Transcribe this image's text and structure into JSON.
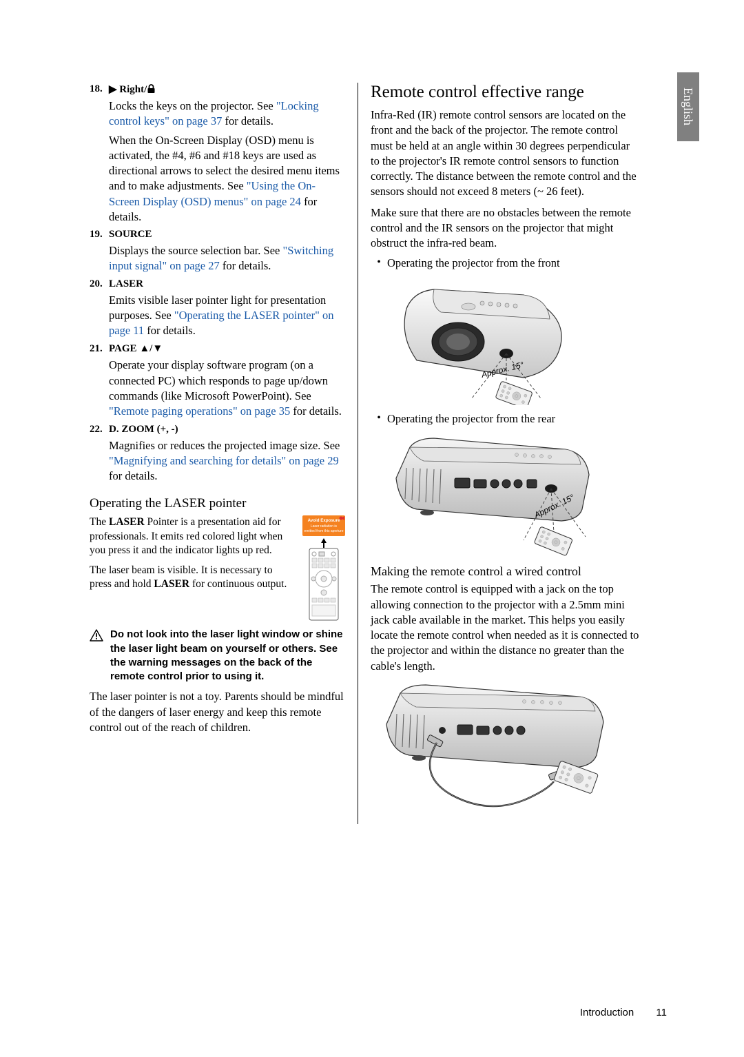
{
  "sideTab": "English",
  "items": [
    {
      "num": "18.",
      "title_pre": "",
      "title": "Right/",
      "glyph": "right-lock",
      "bodies": [
        {
          "parts": [
            {
              "t": "Locks the keys on the projector. See "
            },
            {
              "t": "\"Locking control keys\" on page 37",
              "link": true
            },
            {
              "t": " for details."
            }
          ]
        },
        {
          "parts": [
            {
              "t": "When the On-Screen Display (OSD) menu is activated, the #4, #6 and #18 keys are used as directional arrows to select the desired menu items and to make adjustments. See "
            },
            {
              "t": "\"Using the On-Screen Display (OSD) menus\" on page 24",
              "link": true
            },
            {
              "t": " for details."
            }
          ]
        }
      ]
    },
    {
      "num": "19.",
      "title": "SOURCE",
      "bodies": [
        {
          "parts": [
            {
              "t": "Displays the source selection bar. See "
            },
            {
              "t": "\"Switching input signal\" on page 27",
              "link": true
            },
            {
              "t": " for details."
            }
          ]
        }
      ]
    },
    {
      "num": "20.",
      "title": "LASER",
      "bodies": [
        {
          "parts": [
            {
              "t": "Emits visible laser pointer light for presentation purposes. See "
            },
            {
              "t": "\"Operating the LASER pointer\" on page 11",
              "link": true
            },
            {
              "t": " for details."
            }
          ]
        }
      ]
    },
    {
      "num": "21.",
      "title": "PAGE ",
      "glyph": "page-arrows",
      "bodies": [
        {
          "parts": [
            {
              "t": "Operate your display software program (on a connected PC) which responds to page up/down commands (like Microsoft PowerPoint). See "
            },
            {
              "t": "\"Remote paging operations\" on page 35",
              "link": true
            },
            {
              "t": " for details."
            }
          ]
        }
      ]
    },
    {
      "num": "22.",
      "title": "D. ZOOM (+, -)",
      "bodies": [
        {
          "parts": [
            {
              "t": "Magnifies or reduces the projected image size. See "
            },
            {
              "t": "\"Magnifying and searching for details\" on page 29",
              "link": true
            },
            {
              "t": " for details."
            }
          ]
        }
      ]
    }
  ],
  "laser": {
    "heading": "Operating the LASER pointer",
    "p1_pre": "The ",
    "p1_bold": "LASER",
    "p1_post": " Pointer is a presentation aid for professionals. It emits red colored light when you press it and the indicator lights up red.",
    "p2_pre": "The laser beam is visible. It is necessary to press and hold ",
    "p2_bold": "LASER",
    "p2_post": " for continuous output.",
    "warnLabel": {
      "l1": "Avoid Exposure",
      "l2": "Laser radiation is",
      "l3": "emitted from this aperture"
    },
    "warning": "Do not look into the laser light window or shine the laser light beam on yourself or others. See the warning messages on the back of the remote control prior to using it.",
    "p3": "The laser pointer is not a toy. Parents should be mindful of the dangers of laser energy and keep this remote control out of the reach of children."
  },
  "right": {
    "h2": "Remote control effective range",
    "p1": "Infra-Red (IR) remote control sensors are located on the front and the back of the projector. The remote control must be held at an angle within 30 degrees perpendicular to the projector's IR remote control sensors to function correctly. The distance between the remote control and the sensors should not exceed 8 meters (~ 26 feet).",
    "p2": "Make sure that there are no obstacles between the remote control and the IR sensors on the projector that might obstruct the infra-red beam.",
    "b1": "Operating the projector from the front",
    "approx1": "Approx. 15°",
    "b2": "Operating the projector from the rear",
    "approx2": "Approx. 15°",
    "sub2": "Making the remote control a wired control",
    "p3": "The remote control is equipped with a jack on the top allowing connection to the projector with a 2.5mm mini jack cable available in the market. This helps you easily locate the remote control when needed as it is connected to the projector and within the distance no greater than the cable's length."
  },
  "footer": {
    "section": "Introduction",
    "page": "11"
  },
  "colors": {
    "link": "#1a5aa8",
    "tab": "#808080",
    "warnLabel": "#f58220"
  }
}
